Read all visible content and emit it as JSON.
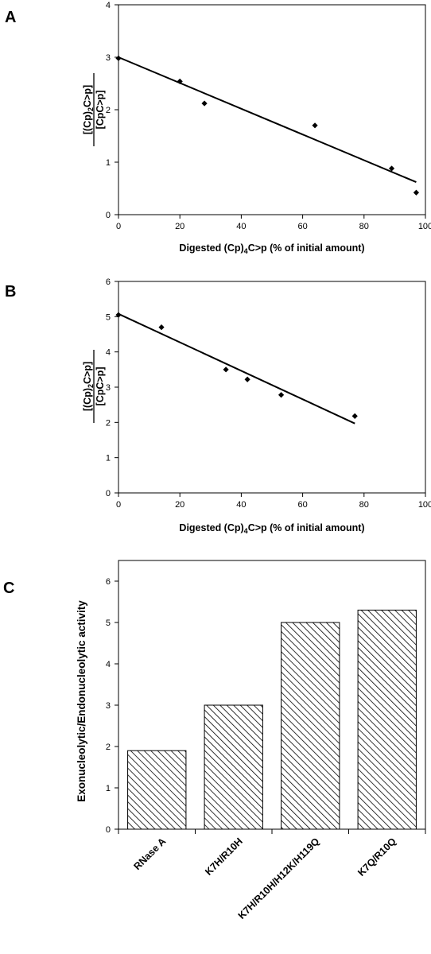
{
  "figure": {
    "panels": [
      "A",
      "B",
      "C"
    ]
  },
  "chart_data": [
    {
      "panel": "A",
      "type": "scatter",
      "x": [
        0,
        20,
        28,
        64,
        89,
        97
      ],
      "y": [
        2.98,
        2.54,
        2.12,
        1.7,
        0.88,
        0.42
      ],
      "trendline": {
        "x": [
          0,
          97
        ],
        "y": [
          3.0,
          0.62
        ]
      },
      "xlabel": "Digested (Cp)4C>p (% of initial amount)",
      "ylabel": {
        "numerator": "[(Cp)2C>p]",
        "denominator": "[CpC>p]"
      },
      "xlim": [
        0,
        100
      ],
      "ylim": [
        0,
        4
      ],
      "xticks": [
        "0",
        "20",
        "40",
        "60",
        "80",
        "100"
      ],
      "yticks": [
        "0",
        "1",
        "2",
        "3",
        "4"
      ],
      "grid": false
    },
    {
      "panel": "B",
      "type": "scatter",
      "x": [
        0,
        14,
        35,
        42,
        53,
        77
      ],
      "y": [
        5.05,
        4.7,
        3.5,
        3.22,
        2.78,
        2.18
      ],
      "trendline": {
        "x": [
          0,
          77
        ],
        "y": [
          5.08,
          1.97
        ]
      },
      "xlabel": "Digested (Cp)4C>p (% of initial amount)",
      "ylabel": {
        "numerator": "[(Cp)2C>p]",
        "denominator": "[CpC>p]"
      },
      "xlim": [
        0,
        100
      ],
      "ylim": [
        0,
        6
      ],
      "xticks": [
        "0",
        "20",
        "40",
        "60",
        "80",
        "100"
      ],
      "yticks": [
        "0",
        "1",
        "2",
        "3",
        "4",
        "5",
        "6"
      ],
      "grid": false
    },
    {
      "panel": "C",
      "type": "bar",
      "categories": [
        "RNase A",
        "K7H/R10H",
        "K7H/R10H/H12K/H119Q",
        "K7Q/R10Q"
      ],
      "values": [
        1.9,
        3.0,
        5.0,
        5.3
      ],
      "ylabel": "Exonucleolytic/Endonucleolytic activity",
      "xlabel": "",
      "ylim": [
        0,
        6.5
      ],
      "yticks": [
        "0",
        "1",
        "2",
        "3",
        "4",
        "5",
        "6"
      ],
      "bar_fill": "diagonal-hatch",
      "grid": false
    }
  ]
}
